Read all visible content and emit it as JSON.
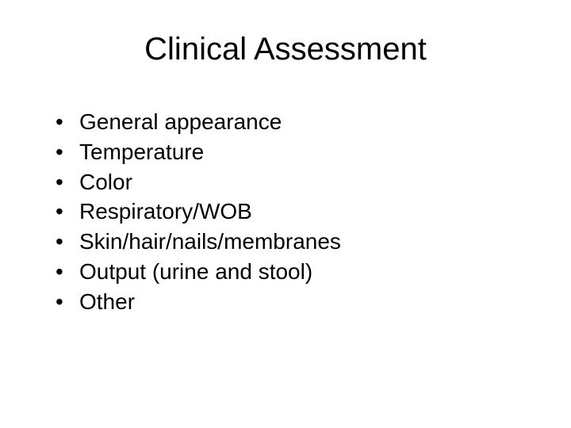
{
  "slide": {
    "title": "Clinical Assessment",
    "title_fontsize": 40,
    "background_color": "#ffffff",
    "text_color": "#000000",
    "bullet_marker": "•",
    "bullets": [
      "General appearance",
      "Temperature",
      "Color",
      "Respiratory/WOB",
      "Skin/hair/nails/membranes",
      "Output (urine and stool)",
      "Other"
    ],
    "bullet_fontsize": 28
  }
}
